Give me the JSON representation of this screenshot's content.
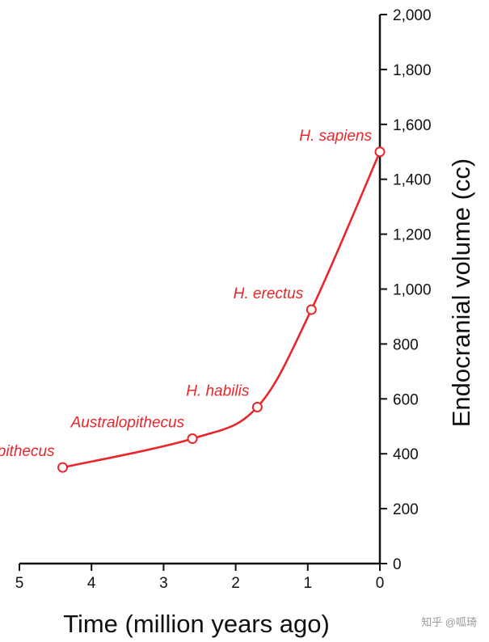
{
  "chart_data": {
    "type": "line",
    "title": "",
    "xlabel": "Time (million years ago)",
    "ylabel": "Endocranial volume (cc)",
    "xlim": [
      5,
      0
    ],
    "ylim": [
      0,
      2000
    ],
    "x_ticks": [
      5,
      4,
      3,
      2,
      1,
      0
    ],
    "x_tick_labels": [
      "5",
      "4",
      "3",
      "2",
      "1",
      "0"
    ],
    "y_ticks": [
      0,
      200,
      400,
      600,
      800,
      1000,
      1200,
      1400,
      1600,
      1800,
      2000
    ],
    "y_tick_labels": [
      "0",
      "200",
      "400",
      "600",
      "800",
      "1,000",
      "1,200",
      "1,400",
      "1,600",
      "1,800",
      "2,000"
    ],
    "grid": false,
    "color": "#e8262b",
    "series": [
      {
        "points": [
          {
            "label": "Ardipithecus",
            "x": 4.4,
            "y": 350
          },
          {
            "label": "Australopithecus",
            "x": 2.6,
            "y": 455
          },
          {
            "label": "H. habilis",
            "x": 1.7,
            "y": 570
          },
          {
            "label": "H. erectus",
            "x": 0.95,
            "y": 925
          },
          {
            "label": "H. sapiens",
            "x": 0.0,
            "y": 1500
          }
        ]
      }
    ]
  },
  "watermark": "知乎 @呱琦"
}
